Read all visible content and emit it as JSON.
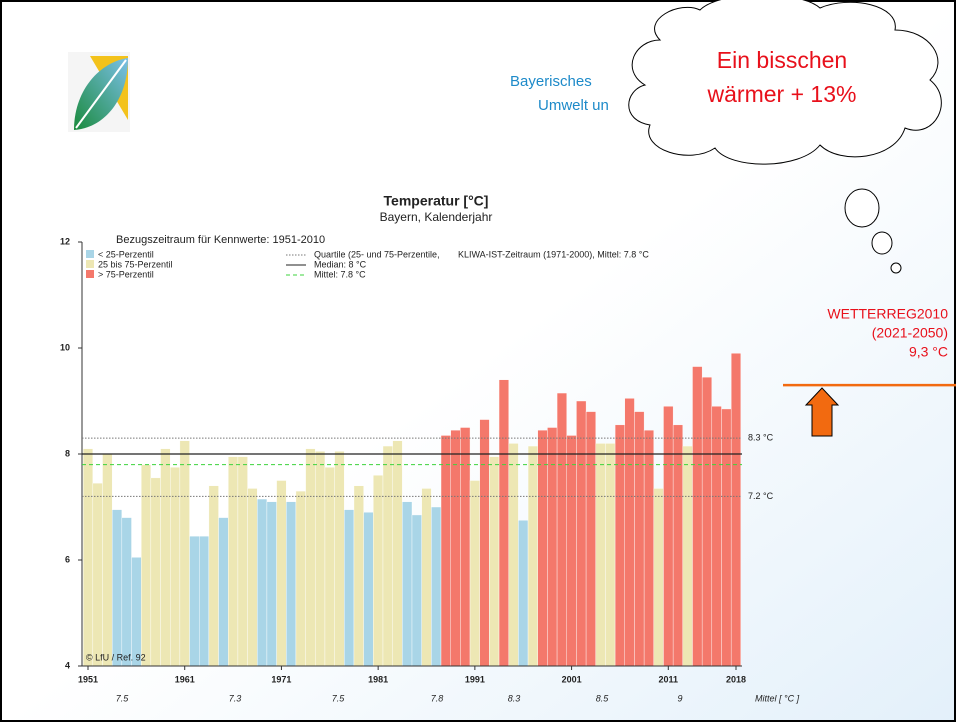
{
  "header": {
    "lines": [
      "Bayerisches",
      "Umwelt un"
    ]
  },
  "cloud": {
    "lines": [
      "Ein bisschen",
      "wärmer + 13%"
    ]
  },
  "chart_data": {
    "type": "bar",
    "title": "Temperatur [°C]",
    "subtitle": "Bayern, Kalenderjahr",
    "reference_period": "Bezugszeitraum für Kennwerte: 1951-2010",
    "x": [
      1951,
      1952,
      1953,
      1954,
      1955,
      1956,
      1957,
      1958,
      1959,
      1960,
      1961,
      1962,
      1963,
      1964,
      1965,
      1966,
      1967,
      1968,
      1969,
      1970,
      1971,
      1972,
      1973,
      1974,
      1975,
      1976,
      1977,
      1978,
      1979,
      1980,
      1981,
      1982,
      1983,
      1984,
      1985,
      1986,
      1987,
      1988,
      1989,
      1990,
      1991,
      1992,
      1993,
      1994,
      1995,
      1996,
      1997,
      1998,
      1999,
      2000,
      2001,
      2002,
      2003,
      2004,
      2005,
      2006,
      2007,
      2008,
      2009,
      2010,
      2011,
      2012,
      2013,
      2014,
      2015,
      2016,
      2017,
      2018
    ],
    "values": [
      8.1,
      7.45,
      8.0,
      6.95,
      6.8,
      6.05,
      7.8,
      7.55,
      8.1,
      7.75,
      8.25,
      6.45,
      6.45,
      7.4,
      6.8,
      7.95,
      7.95,
      7.35,
      7.15,
      7.1,
      7.5,
      7.1,
      7.3,
      8.1,
      8.05,
      7.75,
      8.05,
      6.95,
      7.4,
      6.9,
      7.6,
      8.15,
      8.25,
      7.1,
      6.85,
      7.35,
      7.0,
      8.35,
      8.45,
      8.5,
      7.5,
      8.65,
      7.95,
      9.4,
      8.2,
      6.75,
      8.15,
      8.45,
      8.5,
      9.15,
      8.35,
      9.0,
      8.8,
      8.2,
      8.2,
      8.55,
      9.05,
      8.8,
      8.45,
      7.35,
      8.9,
      8.55,
      8.15,
      9.65,
      9.45,
      8.9,
      8.85,
      9.9
    ],
    "ylim": [
      4,
      12
    ],
    "yticks": [
      4,
      6,
      8,
      10,
      12
    ],
    "xlim": [
      1951,
      2018
    ],
    "xticks": [
      1951,
      1961,
      1971,
      1981,
      1991,
      2001,
      2011,
      2018
    ],
    "classes": [
      {
        "label": "< 25-Perzentil",
        "color": "#a9d5e7"
      },
      {
        "label": "25 bis 75-Perzentil",
        "color": "#ede7b4"
      },
      {
        "label": "> 75-Perzentil",
        "color": "#f4786b"
      }
    ],
    "line_legend": [
      {
        "label": "Quartile (25- und 75-Perzentile,",
        "style": "dotted"
      },
      {
        "label": "Median: 8 °C",
        "style": "solid"
      },
      {
        "label": "Mittel: 7.8 °C",
        "style": "dashed"
      }
    ],
    "line_legend_note": "KLIWA-IST-Zeitraum (1971-2000), Mittel: 7.8 °C",
    "quartiles": [
      {
        "value": 7.2,
        "label": "7.2 °C"
      },
      {
        "value": 8.3,
        "label": "8.3 °C"
      }
    ],
    "median": 8,
    "mean": 7.8,
    "decade_means": [
      7.5,
      7.3,
      7.5,
      7.8,
      8.3,
      8.5,
      9
    ],
    "decade_means_label": "Mittel [ °C ]",
    "credit": "© LfU / Ref. 92",
    "projection": {
      "value": 9.3,
      "labels": [
        "WETTERREG2010",
        "(2021-2050)",
        "9,3 °C"
      ],
      "color": "#f26a10"
    }
  }
}
